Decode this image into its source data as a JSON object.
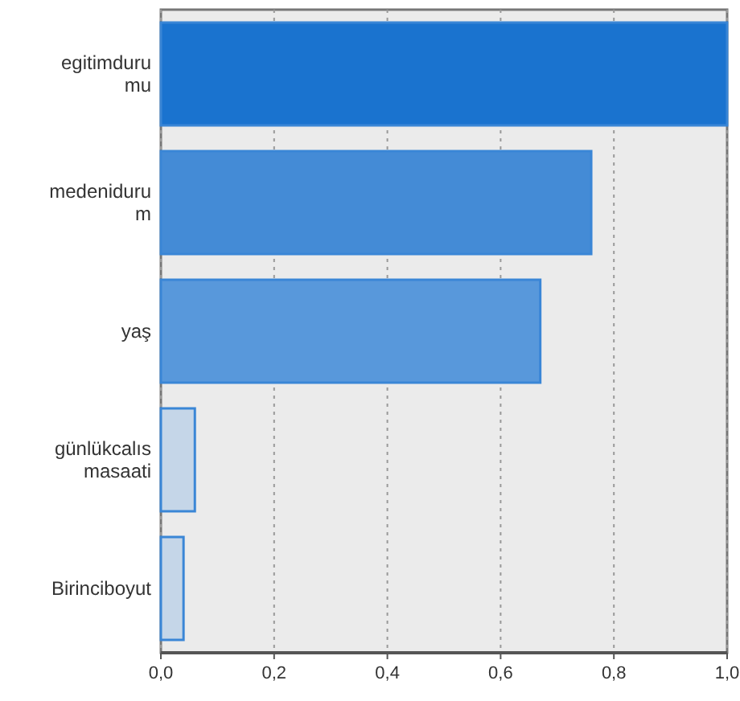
{
  "chart_data": {
    "type": "bar",
    "orientation": "horizontal",
    "categories": [
      "egitimdurumu",
      "medenidurum",
      "yaş",
      "günlükcalısmasaati",
      "Birinciboyut"
    ],
    "values": [
      1.0,
      0.76,
      0.67,
      0.06,
      0.04
    ],
    "colors": [
      "#1a73cf",
      "#448bd6",
      "#5898db",
      "#c5d6e8",
      "#c5d6e8"
    ],
    "xlim": [
      0,
      1
    ],
    "xticks": [
      {
        "value": 0,
        "label": "0,0"
      },
      {
        "value": 0.2,
        "label": "0,2"
      },
      {
        "value": 0.4,
        "label": "0,4"
      },
      {
        "value": 0.6,
        "label": "0,6"
      },
      {
        "value": 0.8,
        "label": "0,8"
      },
      {
        "value": 1,
        "label": "1,0"
      }
    ],
    "grid": "x"
  }
}
